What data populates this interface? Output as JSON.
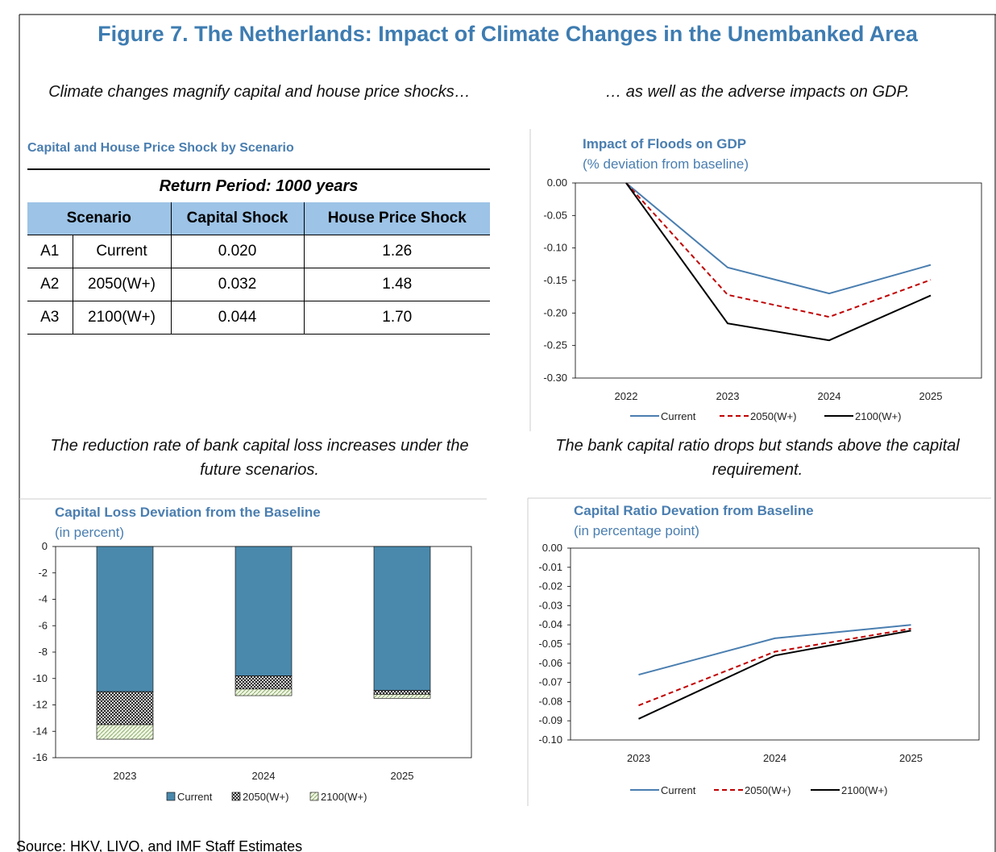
{
  "title": "Figure 7. The Netherlands: Impact of Climate Changes in the Unembanked Area",
  "captions": [
    "Climate changes magnify capital and house price shocks…",
    "… as well as the adverse impacts on GDP.",
    [
      "The reduction rate of bank capital loss increases under the",
      "future scenarios."
    ],
    [
      "The bank capital ratio drops but stands above the capital",
      "requirement."
    ]
  ],
  "table": {
    "title": "Capital and House Price Shock by Scenario",
    "caption": "Return Period: 1000 years",
    "header": [
      "Scenario",
      "Capital Shock",
      "House Price Shock"
    ],
    "rows": [
      [
        "A1",
        "Current",
        "0.020",
        "1.26"
      ],
      [
        "A2",
        "2050(W+)",
        "0.032",
        "1.48"
      ],
      [
        "A3",
        "2100(W+)",
        "0.044",
        "1.70"
      ]
    ]
  },
  "chart_data": [
    {
      "type": "line",
      "title": "Impact of Floods on GDP",
      "subtitle": "(% deviation from baseline)",
      "categories": [
        "2022",
        "2023",
        "2024",
        "2025"
      ],
      "series": [
        {
          "name": "Current",
          "color": "#4a7eb0",
          "dash": false,
          "values": [
            0,
            -0.13,
            -0.17,
            -0.126
          ]
        },
        {
          "name": "2050(W+)",
          "color": "#c00000",
          "dash": true,
          "values": [
            0,
            -0.172,
            -0.206,
            -0.149
          ]
        },
        {
          "name": "2100(W+)",
          "color": "#000000",
          "dash": false,
          "values": [
            0,
            -0.216,
            -0.242,
            -0.173
          ]
        }
      ],
      "ylim": [
        -0.3,
        0.0
      ],
      "yticks": [
        {
          "value": 0,
          "label": "0.00"
        },
        {
          "value": -0.05,
          "label": "-0.05"
        },
        {
          "value": -0.1,
          "label": "-0.10"
        },
        {
          "value": -0.15,
          "label": "-0.15"
        },
        {
          "value": -0.2,
          "label": "-0.20"
        },
        {
          "value": -0.25,
          "label": "-0.25"
        },
        {
          "value": -0.3,
          "label": "-0.30"
        }
      ],
      "grid": false
    },
    {
      "type": "bar",
      "stacked": true,
      "title": "Capital Loss Deviation from the Baseline",
      "subtitle": "(in percent)",
      "categories": [
        "2023",
        "2024",
        "2025"
      ],
      "series": [
        {
          "name": "Current",
          "color": "#4a89ac",
          "pattern": "solid",
          "values": [
            -11.0,
            -9.8,
            -10.9
          ]
        },
        {
          "name": "2050(W+)",
          "color": "#000000",
          "pattern": "crosshatch",
          "values": [
            -2.5,
            -1.0,
            -0.3
          ]
        },
        {
          "name": "2100(W+)",
          "color": "#7fa05a",
          "pattern": "diagonal",
          "values": [
            -1.1,
            -0.5,
            -0.3
          ]
        }
      ],
      "ylim": [
        -16,
        0
      ],
      "yticks": [
        0,
        -2,
        -4,
        -6,
        -8,
        -10,
        -12,
        -14,
        -16
      ],
      "grid": false
    },
    {
      "type": "line",
      "title": "Capital Ratio Devation from Baseline",
      "subtitle": "(in percentage point)",
      "categories": [
        "2023",
        "2024",
        "2025"
      ],
      "series": [
        {
          "name": "Current",
          "color": "#4a7eb0",
          "dash": false,
          "values": [
            -0.066,
            -0.047,
            -0.04
          ]
        },
        {
          "name": "2050(W+)",
          "color": "#c00000",
          "dash": true,
          "values": [
            -0.082,
            -0.054,
            -0.042
          ]
        },
        {
          "name": "2100(W+)",
          "color": "#000000",
          "dash": false,
          "values": [
            -0.089,
            -0.056,
            -0.043
          ]
        }
      ],
      "ylim": [
        -0.1,
        0.0
      ],
      "yticks": [
        {
          "value": 0,
          "label": "0.00"
        },
        {
          "value": -0.01,
          "label": "-0.01"
        },
        {
          "value": -0.02,
          "label": "-0.02"
        },
        {
          "value": -0.03,
          "label": "-0.03"
        },
        {
          "value": -0.04,
          "label": "-0.04"
        },
        {
          "value": -0.05,
          "label": "-0.05"
        },
        {
          "value": -0.06,
          "label": "-0.06"
        },
        {
          "value": -0.07,
          "label": "-0.07"
        },
        {
          "value": -0.08,
          "label": "-0.08"
        },
        {
          "value": -0.09,
          "label": "-0.09"
        },
        {
          "value": -0.1,
          "label": "-0.10"
        }
      ],
      "grid": false
    }
  ],
  "source": "Source:  HKV, LIVO, and IMF Staff Estimates"
}
